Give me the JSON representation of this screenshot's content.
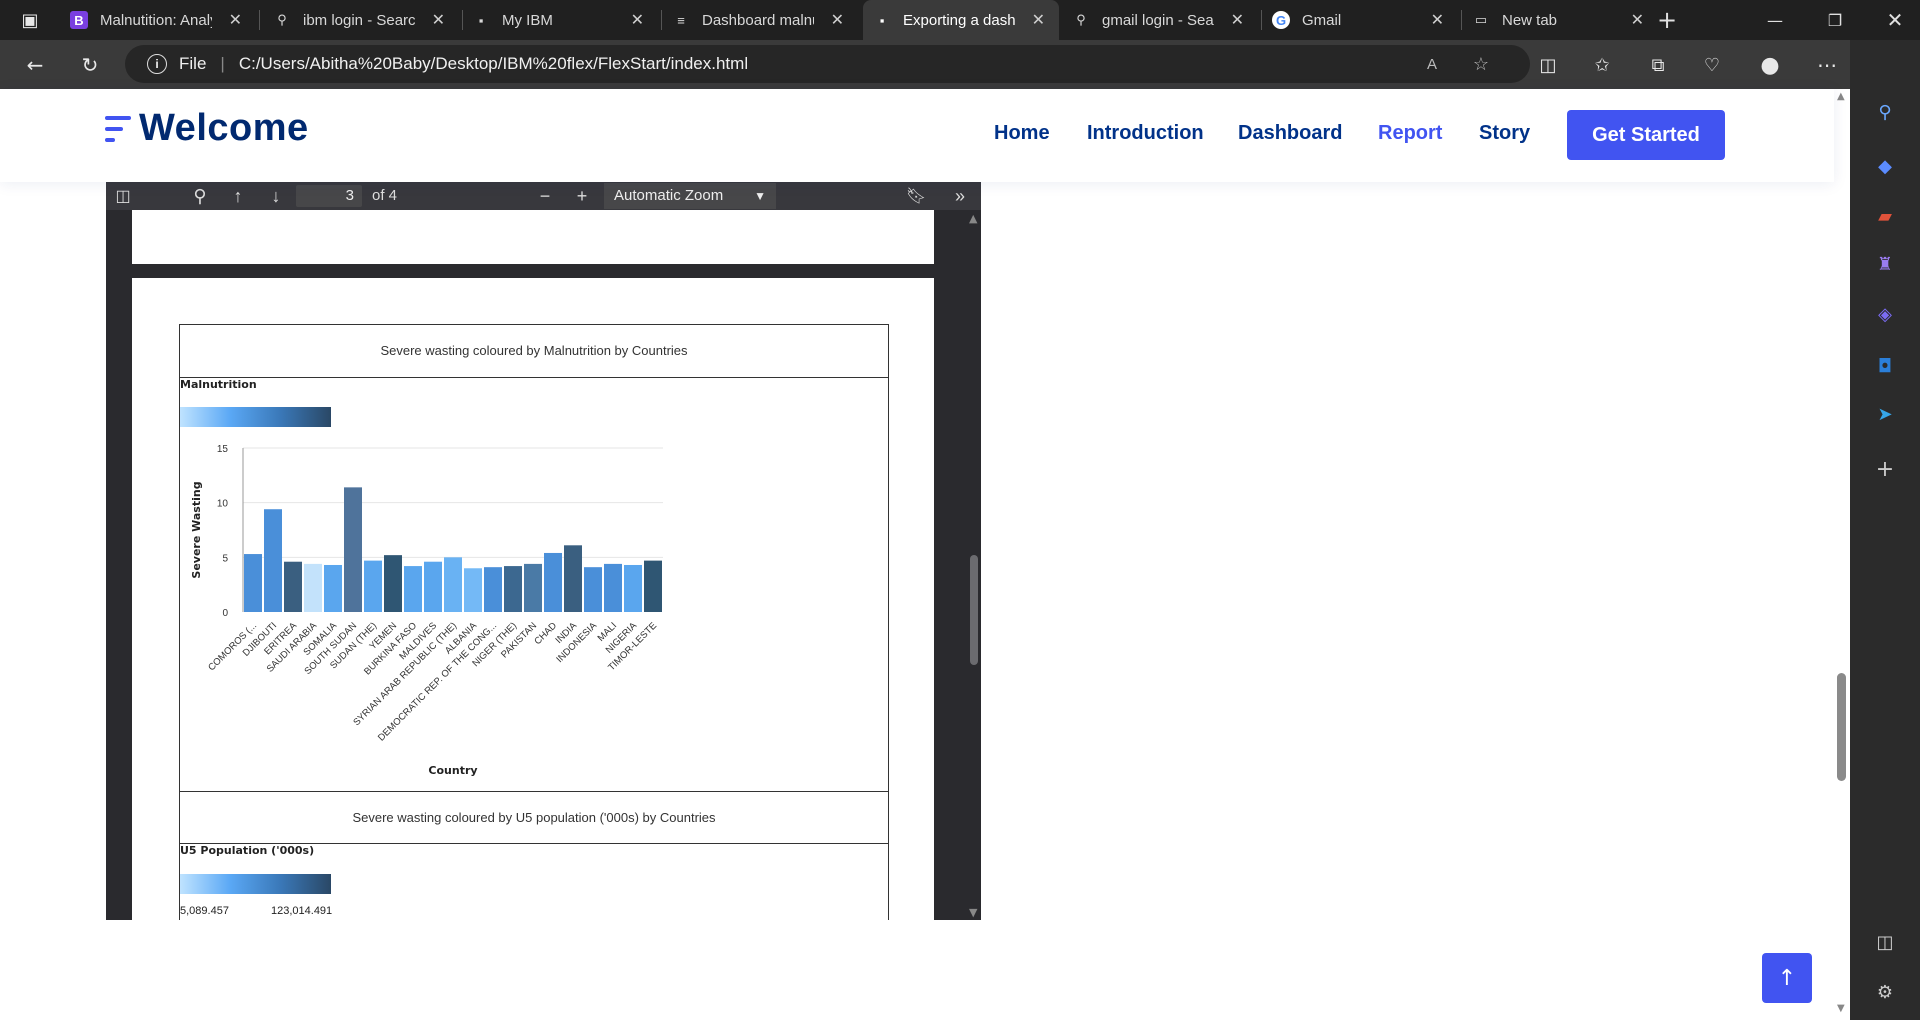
{
  "tabs": [
    {
      "label": "Malnutition: Analy",
      "icon": "bootstrap-icon",
      "glyph": "B"
    },
    {
      "label": "ibm login - Search",
      "icon": "search-icon",
      "glyph": "⚲"
    },
    {
      "label": "My IBM",
      "icon": "ibm-icon",
      "glyph": "▪"
    },
    {
      "label": "Dashboard malnu",
      "icon": "dashboard-icon",
      "glyph": "≡"
    },
    {
      "label": "Exporting a dashb",
      "icon": "ibm-icon",
      "glyph": "▪"
    },
    {
      "label": "gmail login - Sear",
      "icon": "search-icon",
      "glyph": "⚲"
    },
    {
      "label": "Gmail",
      "icon": "google-icon",
      "glyph": "G"
    },
    {
      "label": "New tab",
      "icon": "new-tab-icon",
      "glyph": "▭"
    }
  ],
  "address": {
    "file_label": "File",
    "url": "C:/Users/Abitha%20Baby/Desktop/IBM%20flex/FlexStart/index.html"
  },
  "site": {
    "logo": "Welcome",
    "nav": [
      "Home",
      "Introduction",
      "Dashboard",
      "Report",
      "Story"
    ],
    "active_nav": "Report",
    "cta": "Get Started"
  },
  "pdf": {
    "page": "3",
    "of_pages": "of 4",
    "zoom": "Automatic Zoom"
  },
  "chart1": {
    "title": "Severe wasting coloured by Malnutrition by Countries",
    "legend_title": "Malnutrition"
  },
  "chart2": {
    "title": "Severe wasting coloured by U5 population ('000s) by Countries",
    "legend_title": "U5 Population ('000s)",
    "legend_min": "5,089.457",
    "legend_max": "123,014.491"
  },
  "chart_data": {
    "type": "bar",
    "xlabel": "Country",
    "ylabel": "Severe Wasting",
    "ylim": [
      0,
      15
    ],
    "yticks": [
      "0",
      "5",
      "10",
      "15"
    ],
    "categories": [
      "COMOROS (...",
      "DJIBOUTI",
      "ERITREA",
      "SAUDI ARABIA",
      "SOMALIA",
      "SOUTH SUDAN",
      "SUDAN (THE)",
      "YEMEN",
      "BURKINA FASO",
      "MALDIVES",
      "SYRIAN ARAB REPUBLIC (THE)",
      "ALBANIA",
      "DEMOCRATIC REP. OF THE CONG...",
      "NIGER (THE)",
      "PAKISTAN",
      "CHAD",
      "INDIA",
      "INDONESIA",
      "MALI",
      "NIGERIA",
      "TIMOR-LESTE"
    ],
    "values": [
      5.3,
      9.4,
      4.6,
      4.4,
      4.3,
      11.4,
      4.7,
      5.2,
      4.2,
      4.6,
      5.0,
      4.0,
      4.1,
      4.2,
      4.4,
      5.4,
      6.1,
      4.1,
      4.4,
      4.3,
      4.7
    ],
    "colors": [
      "#4a8fd9",
      "#4a8fd9",
      "#3a5f80",
      "#c3e2fb",
      "#5aa6ee",
      "#4f739b",
      "#5aa6ee",
      "#2f5673",
      "#5aa6ee",
      "#5aa6ee",
      "#69b2f3",
      "#74b9f6",
      "#4a8fd9",
      "#3c6890",
      "#4a7aa6",
      "#4a8fd9",
      "#3a5f80",
      "#4a8fd9",
      "#4a8fd9",
      "#5aa6ee",
      "#2f5673"
    ]
  }
}
